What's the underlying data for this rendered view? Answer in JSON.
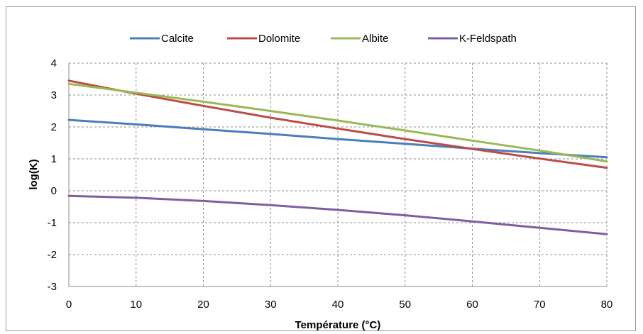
{
  "chart_data": {
    "type": "line",
    "xlabel": "Température (°C)",
    "ylabel": "log(K)",
    "xlim": [
      0,
      80
    ],
    "ylim": [
      -3,
      4
    ],
    "xticks": [
      0,
      10,
      20,
      30,
      40,
      50,
      60,
      70,
      80
    ],
    "yticks": [
      -3,
      -2,
      -1,
      0,
      1,
      2,
      3,
      4
    ],
    "grid": true,
    "legend_position": "top",
    "x": [
      0,
      10,
      20,
      30,
      40,
      50,
      60,
      70,
      80
    ],
    "series": [
      {
        "name": "Calcite",
        "color": "#4a7ebb",
        "values": [
          2.22,
          2.08,
          1.93,
          1.78,
          1.62,
          1.47,
          1.32,
          1.18,
          1.05
        ]
      },
      {
        "name": "Dolomite",
        "color": "#be4b48",
        "values": [
          3.45,
          3.04,
          2.66,
          2.29,
          1.95,
          1.62,
          1.31,
          1.01,
          0.72
        ]
      },
      {
        "name": "Albite",
        "color": "#98b954",
        "values": [
          3.35,
          3.07,
          2.79,
          2.5,
          2.2,
          1.89,
          1.57,
          1.26,
          0.92
        ]
      },
      {
        "name": "K-Feldspath",
        "color": "#7d5fa0",
        "values": [
          -0.16,
          -0.22,
          -0.32,
          -0.45,
          -0.6,
          -0.77,
          -0.96,
          -1.16,
          -1.36
        ]
      }
    ]
  }
}
